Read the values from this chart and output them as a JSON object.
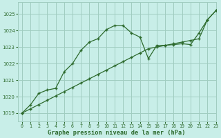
{
  "line1_x": [
    0,
    1,
    2,
    3,
    4,
    5,
    6,
    7,
    8,
    9,
    10,
    11,
    12,
    13,
    14,
    15,
    16,
    17,
    18,
    19,
    20,
    21,
    22,
    23
  ],
  "line1_y": [
    1019.0,
    1019.5,
    1020.2,
    1020.4,
    1020.5,
    1021.5,
    1022.0,
    1022.8,
    1023.3,
    1023.5,
    1024.05,
    1024.3,
    1024.3,
    1023.85,
    1023.6,
    1022.3,
    1023.1,
    1023.1,
    1023.15,
    1023.2,
    1023.15,
    1023.85,
    1024.65,
    1025.2
  ],
  "line2_x": [
    0,
    1,
    2,
    3,
    4,
    5,
    6,
    7,
    8,
    9,
    10,
    11,
    12,
    13,
    14,
    15,
    16,
    17,
    18,
    19,
    20,
    21,
    22,
    23
  ],
  "line2_y": [
    1019.0,
    1019.26,
    1019.52,
    1019.78,
    1020.04,
    1020.3,
    1020.56,
    1020.82,
    1021.08,
    1021.34,
    1021.6,
    1021.86,
    1022.12,
    1022.38,
    1022.64,
    1022.9,
    1023.0,
    1023.1,
    1023.2,
    1023.3,
    1023.4,
    1023.5,
    1024.65,
    1025.2
  ],
  "line_color": "#2d6a2d",
  "marker": "+",
  "bg_color": "#c8eee8",
  "grid_color": "#a0ccc0",
  "xlabel": "Graphe pression niveau de la mer (hPa)",
  "ylim": [
    1018.5,
    1025.7
  ],
  "xlim": [
    -0.5,
    23
  ],
  "yticks": [
    1019,
    1020,
    1021,
    1022,
    1023,
    1024,
    1025
  ],
  "xticks": [
    0,
    1,
    2,
    3,
    4,
    5,
    6,
    7,
    8,
    9,
    10,
    11,
    12,
    13,
    14,
    15,
    16,
    17,
    18,
    19,
    20,
    21,
    22,
    23
  ]
}
